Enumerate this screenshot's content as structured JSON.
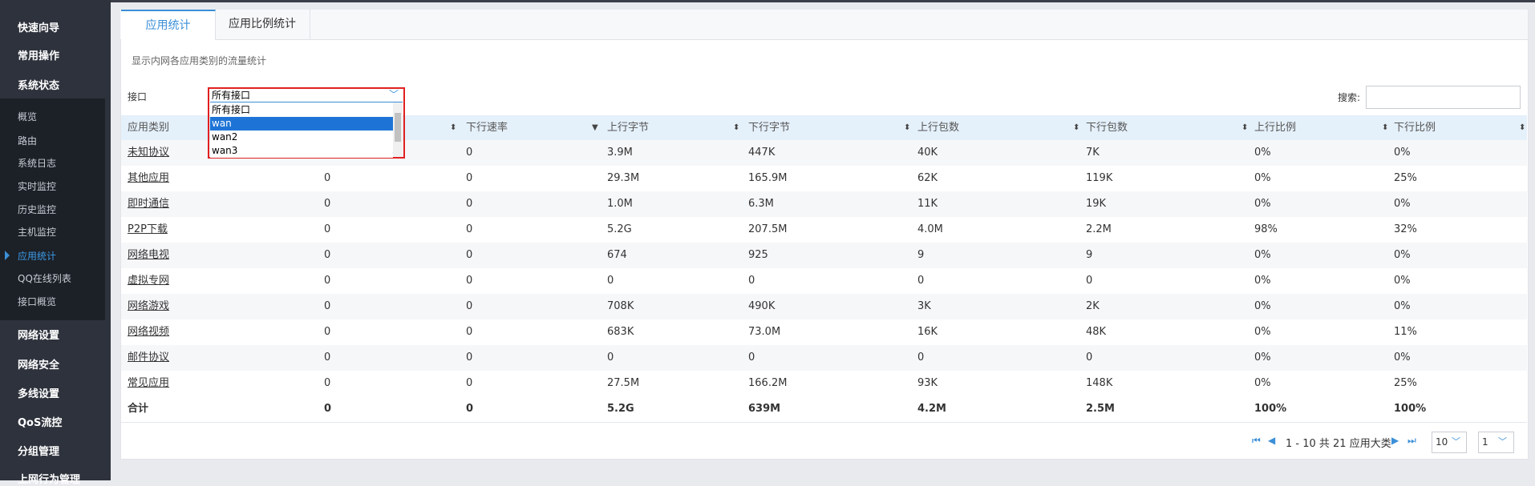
{
  "sidebar": {
    "top": [
      "快速向导",
      "常用操作",
      "系统状态"
    ],
    "sub": [
      "概览",
      "路由",
      "系统日志",
      "实时监控",
      "历史监控",
      "主机监控",
      "应用统计",
      "QQ在线列表",
      "接口概览"
    ],
    "bottom": [
      "网络设置",
      "网络安全",
      "多线设置",
      "QoS流控",
      "分组管理",
      "上网行为管理"
    ]
  },
  "tabs": [
    "应用统计",
    "应用比例统计"
  ],
  "description": "显示内网各应用类别的流量统计",
  "filter": {
    "label": "接口",
    "selected": "所有接口",
    "options": [
      "所有接口",
      "wan",
      "wan2",
      "wan3"
    ],
    "search_label": "搜索:"
  },
  "table": {
    "headers": [
      "应用类别",
      null,
      "下行速率",
      "上行字节",
      "下行字节",
      "上行包数",
      "下行包数",
      "上行比例",
      "下行比例"
    ],
    "rows": [
      [
        "未知协议",
        null,
        "0",
        "3.9M",
        "447K",
        "40K",
        "7K",
        "0%",
        "0%"
      ],
      [
        "其他应用",
        "0",
        "0",
        "29.3M",
        "165.9M",
        "62K",
        "119K",
        "0%",
        "25%"
      ],
      [
        "即时通信",
        "0",
        "0",
        "1.0M",
        "6.3M",
        "11K",
        "19K",
        "0%",
        "0%"
      ],
      [
        "P2P下载",
        "0",
        "0",
        "5.2G",
        "207.5M",
        "4.0M",
        "2.2M",
        "98%",
        "32%"
      ],
      [
        "网络电视",
        "0",
        "0",
        "674",
        "925",
        "9",
        "9",
        "0%",
        "0%"
      ],
      [
        "虚拟专网",
        "0",
        "0",
        "0",
        "0",
        "0",
        "0",
        "0%",
        "0%"
      ],
      [
        "网络游戏",
        "0",
        "0",
        "708K",
        "490K",
        "3K",
        "2K",
        "0%",
        "0%"
      ],
      [
        "网络视频",
        "0",
        "0",
        "683K",
        "73.0M",
        "16K",
        "48K",
        "0%",
        "11%"
      ],
      [
        "邮件协议",
        "0",
        "0",
        "0",
        "0",
        "0",
        "0",
        "0%",
        "0%"
      ],
      [
        "常见应用",
        "0",
        "0",
        "27.5M",
        "166.2M",
        "93K",
        "148K",
        "0%",
        "25%"
      ]
    ],
    "total": [
      "合计",
      "0",
      "0",
      "5.2G",
      "639M",
      "4.2M",
      "2.5M",
      "100%",
      "100%"
    ]
  },
  "pagination": {
    "summary": "1 - 10 共 21 应用大类",
    "page_size": "10",
    "page": "1"
  }
}
